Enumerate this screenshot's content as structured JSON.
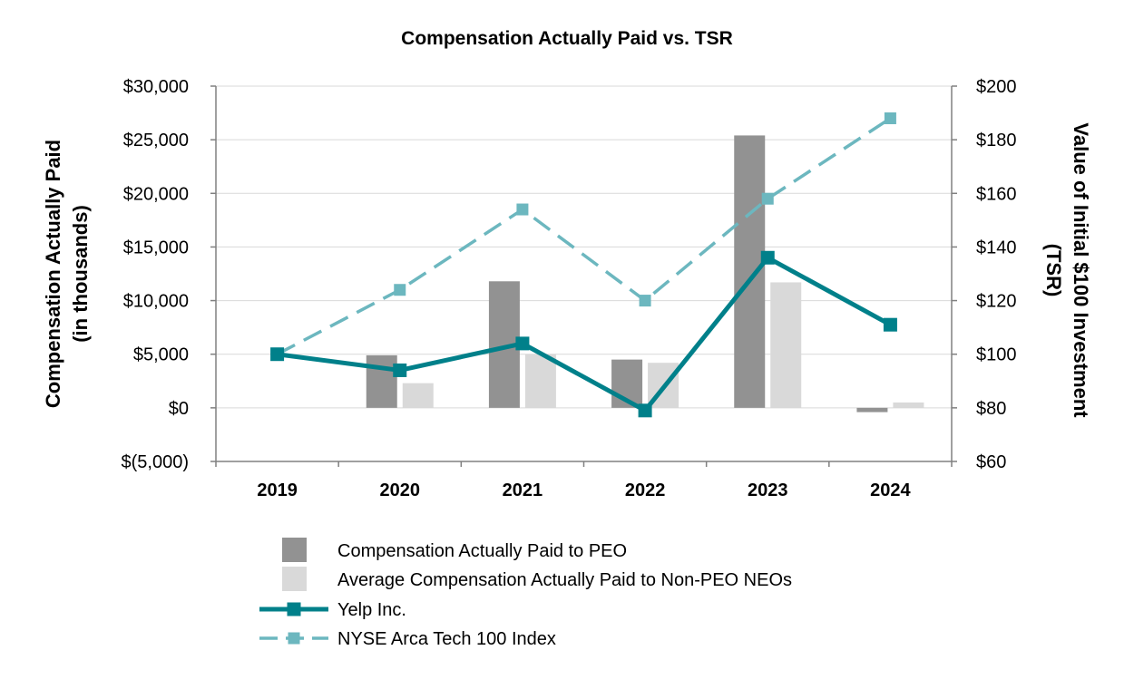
{
  "chart_data": {
    "type": "bar",
    "title": "Compensation Actually Paid vs. TSR",
    "categories": [
      "2019",
      "2020",
      "2021",
      "2022",
      "2023",
      "2024"
    ],
    "ylabel_left": [
      "Compensation Actually Paid",
      "(in thousands)"
    ],
    "ylabel_right": [
      "Value of Initial $100 Investment",
      "(TSR)"
    ],
    "ylim_left": [
      -5000,
      30000
    ],
    "ylim_right": [
      60,
      200
    ],
    "left_ticks": [
      {
        "value": 30000,
        "label": "$30,000"
      },
      {
        "value": 25000,
        "label": "$25,000"
      },
      {
        "value": 20000,
        "label": "$20,000"
      },
      {
        "value": 15000,
        "label": "$15,000"
      },
      {
        "value": 10000,
        "label": "$10,000"
      },
      {
        "value": 5000,
        "label": "$5,000"
      },
      {
        "value": 0,
        "label": "$0"
      },
      {
        "value": -5000,
        "label": "$(5,000)"
      }
    ],
    "right_ticks": [
      {
        "value": 200,
        "label": "$200"
      },
      {
        "value": 180,
        "label": "$180"
      },
      {
        "value": 160,
        "label": "$160"
      },
      {
        "value": 140,
        "label": "$140"
      },
      {
        "value": 120,
        "label": "$120"
      },
      {
        "value": 100,
        "label": "$100"
      },
      {
        "value": 80,
        "label": "$80"
      },
      {
        "value": 60,
        "label": "$60"
      }
    ],
    "bar_series": [
      {
        "name": "Compensation Actually Paid to PEO",
        "color": "#929292",
        "values": [
          null,
          4900,
          11800,
          4500,
          25400,
          -400
        ]
      },
      {
        "name": "Average Compensation Actually Paid to Non-PEO NEOs",
        "color": "#d9d9d9",
        "values": [
          null,
          2300,
          5000,
          4200,
          11700,
          500
        ]
      }
    ],
    "line_series": [
      {
        "name": "Yelp Inc.",
        "color": "#00808a",
        "style": "solid",
        "axis": "right",
        "values": [
          100,
          94,
          104,
          79,
          136,
          111
        ]
      },
      {
        "name": "NYSE Arca Tech 100 Index",
        "color": "#6cb7bf",
        "style": "dashed",
        "axis": "right",
        "values": [
          100,
          124,
          154,
          120,
          158,
          188
        ]
      }
    ],
    "grid": true,
    "legend_position": "bottom"
  }
}
